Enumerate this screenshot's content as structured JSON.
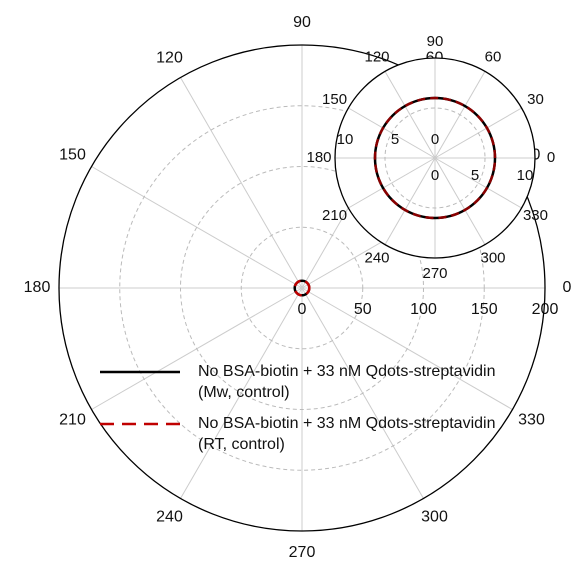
{
  "chart_data": [
    {
      "type": "polar",
      "theta": [
        0,
        15,
        30,
        45,
        60,
        75,
        90,
        105,
        120,
        135,
        150,
        165,
        180,
        195,
        210,
        225,
        240,
        255,
        270,
        285,
        300,
        315,
        330,
        345
      ],
      "thetaticks": [
        0,
        30,
        60,
        90,
        120,
        150,
        180,
        210,
        240,
        270,
        300,
        330
      ],
      "rlim": [
        0,
        200
      ],
      "rticks": [
        0,
        50,
        100,
        150,
        200
      ],
      "grid": true,
      "legend": "lower left",
      "series": [
        {
          "name": "No BSA-biotin + 33 nM Qdots-streptavidin (Mw, control)",
          "color": "#000000",
          "style": "solid",
          "values": [
            6,
            6,
            6,
            6,
            6,
            6,
            6,
            6,
            6,
            6,
            6,
            6,
            6,
            6,
            6,
            6,
            6,
            6,
            6,
            6,
            6,
            6,
            6,
            6
          ]
        },
        {
          "name": "No BSA-biotin + 33 nM Qdots-streptavidin (RT, control)",
          "color": "#c00000",
          "style": "dashed",
          "values": [
            6,
            6,
            6,
            6,
            6,
            6,
            6,
            6,
            6,
            6,
            6,
            6,
            6,
            6,
            6,
            6,
            6,
            6,
            6,
            6,
            6,
            6,
            6,
            6
          ]
        }
      ]
    },
    {
      "type": "polar",
      "theta": [
        0,
        15,
        30,
        45,
        60,
        75,
        90,
        105,
        120,
        135,
        150,
        165,
        180,
        195,
        210,
        225,
        240,
        255,
        270,
        285,
        300,
        315,
        330,
        345
      ],
      "thetaticks": [
        0,
        30,
        60,
        90,
        120,
        150,
        180,
        210,
        240,
        270,
        300,
        330
      ],
      "rlim": [
        0,
        10
      ],
      "rticks": [
        0,
        5,
        10
      ],
      "grid": true,
      "series": [
        {
          "color": "#000000",
          "style": "solid",
          "values": [
            6,
            6,
            6,
            6,
            6,
            6,
            6,
            6,
            6,
            6,
            6,
            6,
            6,
            6,
            6,
            6,
            6,
            6,
            6,
            6,
            6,
            6,
            6,
            6
          ]
        },
        {
          "color": "#8b0000",
          "style": "dashed",
          "values": [
            6,
            6,
            6,
            6,
            6,
            6,
            6,
            6,
            6,
            6,
            6,
            6,
            6,
            6,
            6,
            6,
            6,
            6,
            6,
            6,
            6,
            6,
            6,
            6
          ]
        }
      ]
    }
  ]
}
